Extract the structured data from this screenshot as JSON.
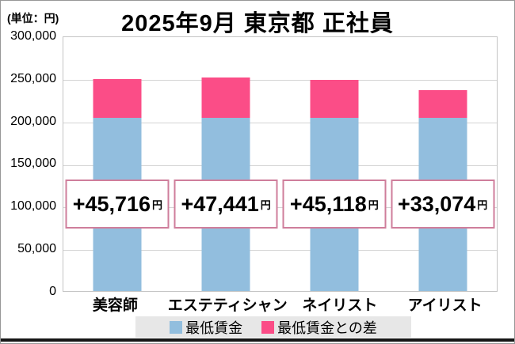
{
  "header": {
    "title": "2025年9月 東京都 正社員",
    "unit_label": "(単位：円)"
  },
  "chart_data": {
    "type": "bar",
    "stacked": true,
    "title": "2025年9月 東京都 正社員",
    "unit": "円",
    "categories": [
      "美容師",
      "エステティシャン",
      "ネイリスト",
      "アイリスト"
    ],
    "series": [
      {
        "name": "最低賃金",
        "color": "#92BEDE",
        "values": [
          204688,
          204688,
          204688,
          204688
        ],
        "value_source": "estimated from bar heights (≈205,000; not labeled on chart)"
      },
      {
        "name": "最低賃金との差",
        "color": "#FB4D87",
        "values": [
          45716,
          47441,
          45118,
          33074
        ]
      }
    ],
    "totals_estimated": [
      250404,
      252129,
      249806,
      237762
    ],
    "diff_labels": [
      "+45,716",
      "+47,441",
      "+45,118",
      "+33,074"
    ],
    "diff_label_suffix": "円",
    "ylim": [
      0,
      300000
    ],
    "ytick_interval": 50000,
    "yticks": [
      "300,000",
      "250,000",
      "200,000",
      "150,000",
      "100,000",
      "50,000",
      "0"
    ],
    "grid": true,
    "legend_position": "bottom"
  },
  "legend": {
    "items": [
      {
        "label": "最低賃金",
        "color": "#92BEDE"
      },
      {
        "label": "最低賃金との差",
        "color": "#FB4D87"
      }
    ]
  }
}
